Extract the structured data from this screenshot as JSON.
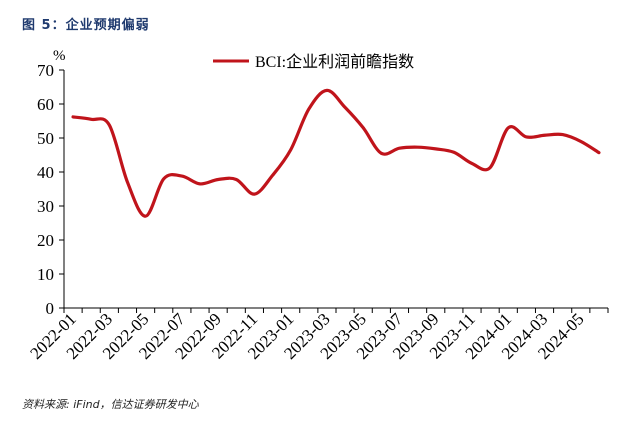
{
  "figure": {
    "title": "图 5：企业预期偏弱",
    "source": "资料来源: iFind，信达证券研发中心"
  },
  "chart_data": {
    "type": "line",
    "unit_label": "%",
    "ylim": [
      0,
      70
    ],
    "yticks": [
      0,
      10,
      20,
      30,
      40,
      50,
      60,
      70
    ],
    "x_tick_labels": [
      "2022-01",
      "2022-03",
      "2022-05",
      "2022-07",
      "2022-09",
      "2022-11",
      "2023-01",
      "2023-03",
      "2023-05",
      "2023-07",
      "2023-09",
      "2023-11",
      "2024-01",
      "2024-03",
      "2024-05"
    ],
    "legend_position": "top-center",
    "grid": false,
    "series": [
      {
        "name": "BCI:企业利润前瞻指数",
        "color": "#c0141b",
        "x": [
          "2022-01",
          "2022-02",
          "2022-03",
          "2022-04",
          "2022-05",
          "2022-06",
          "2022-07",
          "2022-08",
          "2022-09",
          "2022-10",
          "2022-11",
          "2022-12",
          "2023-01",
          "2023-02",
          "2023-03",
          "2023-04",
          "2023-05",
          "2023-06",
          "2023-07",
          "2023-08",
          "2023-09",
          "2023-10",
          "2023-11",
          "2023-12",
          "2024-01",
          "2024-02",
          "2024-03",
          "2024-04",
          "2024-05",
          "2024-06"
        ],
        "values": [
          56.2,
          55.5,
          53.8,
          37.0,
          27.0,
          38.0,
          38.8,
          36.5,
          37.8,
          37.8,
          33.5,
          39.0,
          46.5,
          58.5,
          64.0,
          59.0,
          53.0,
          45.5,
          47.0,
          47.3,
          46.8,
          45.8,
          42.5,
          41.3,
          53.0,
          50.3,
          50.8,
          51.0,
          49.0,
          45.7
        ]
      }
    ]
  }
}
